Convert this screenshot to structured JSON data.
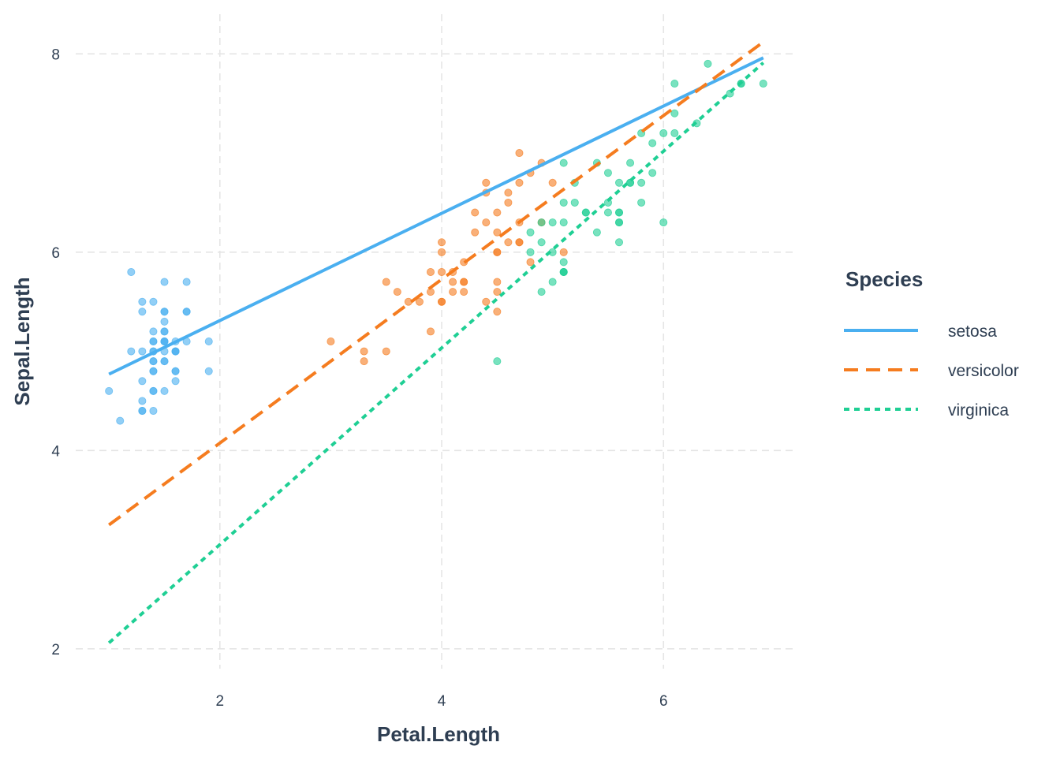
{
  "chart_data": {
    "type": "scatter",
    "title": "",
    "xlabel": "Petal.Length",
    "ylabel": "Sepal.Length",
    "xlim": [
      0.7,
      7.2
    ],
    "ylim": [
      1.8,
      8.4
    ],
    "x_ticks": [
      2,
      4,
      6
    ],
    "y_ticks": [
      2,
      4,
      6,
      8
    ],
    "x_tick_labels": [
      "2",
      "4",
      "6"
    ],
    "y_tick_labels": [
      "2",
      "4",
      "6",
      "8"
    ],
    "grid": true,
    "legend": {
      "title": "Species",
      "position": "right"
    },
    "series": [
      {
        "name": "setosa",
        "color": "#4aaff0",
        "line_style": "solid",
        "fit_line": [
          [
            1.0,
            4.77
          ],
          [
            6.9,
            7.96
          ]
        ],
        "points": [
          [
            1.4,
            5.1
          ],
          [
            1.4,
            4.9
          ],
          [
            1.3,
            4.7
          ],
          [
            1.5,
            4.6
          ],
          [
            1.4,
            5.0
          ],
          [
            1.7,
            5.4
          ],
          [
            1.4,
            4.6
          ],
          [
            1.5,
            5.0
          ],
          [
            1.4,
            4.4
          ],
          [
            1.5,
            4.9
          ],
          [
            1.5,
            5.4
          ],
          [
            1.6,
            4.8
          ],
          [
            1.4,
            4.8
          ],
          [
            1.1,
            4.3
          ],
          [
            1.2,
            5.8
          ],
          [
            1.5,
            5.7
          ],
          [
            1.3,
            5.4
          ],
          [
            1.4,
            5.1
          ],
          [
            1.7,
            5.7
          ],
          [
            1.5,
            5.1
          ],
          [
            1.7,
            5.4
          ],
          [
            1.5,
            5.1
          ],
          [
            1.0,
            4.6
          ],
          [
            1.7,
            5.1
          ],
          [
            1.9,
            4.8
          ],
          [
            1.6,
            5.0
          ],
          [
            1.6,
            5.0
          ],
          [
            1.5,
            5.2
          ],
          [
            1.4,
            5.2
          ],
          [
            1.6,
            4.7
          ],
          [
            1.6,
            4.8
          ],
          [
            1.5,
            5.4
          ],
          [
            1.5,
            5.2
          ],
          [
            1.4,
            5.5
          ],
          [
            1.5,
            4.9
          ],
          [
            1.2,
            5.0
          ],
          [
            1.3,
            5.5
          ],
          [
            1.4,
            4.9
          ],
          [
            1.3,
            4.4
          ],
          [
            1.5,
            5.1
          ],
          [
            1.3,
            5.0
          ],
          [
            1.3,
            4.5
          ],
          [
            1.3,
            4.4
          ],
          [
            1.6,
            5.0
          ],
          [
            1.9,
            5.1
          ],
          [
            1.4,
            4.8
          ],
          [
            1.6,
            5.1
          ],
          [
            1.4,
            4.6
          ],
          [
            1.5,
            5.3
          ],
          [
            1.4,
            5.0
          ]
        ]
      },
      {
        "name": "versicolor",
        "color": "#f57c1f",
        "line_style": "dashed",
        "fit_line": [
          [
            1.0,
            3.25
          ],
          [
            6.9,
            8.12
          ]
        ],
        "points": [
          [
            4.7,
            7.0
          ],
          [
            4.5,
            6.4
          ],
          [
            4.9,
            6.9
          ],
          [
            4.0,
            5.5
          ],
          [
            4.6,
            6.5
          ],
          [
            4.5,
            5.7
          ],
          [
            4.7,
            6.3
          ],
          [
            3.3,
            4.9
          ],
          [
            4.6,
            6.6
          ],
          [
            3.9,
            5.2
          ],
          [
            3.5,
            5.0
          ],
          [
            4.2,
            5.9
          ],
          [
            4.0,
            6.0
          ],
          [
            4.7,
            6.1
          ],
          [
            3.6,
            5.6
          ],
          [
            4.4,
            6.7
          ],
          [
            4.5,
            5.6
          ],
          [
            4.1,
            5.8
          ],
          [
            4.5,
            6.2
          ],
          [
            3.9,
            5.6
          ],
          [
            4.8,
            5.9
          ],
          [
            4.0,
            6.1
          ],
          [
            4.9,
            6.3
          ],
          [
            4.7,
            6.1
          ],
          [
            4.3,
            6.4
          ],
          [
            4.4,
            6.6
          ],
          [
            4.8,
            6.8
          ],
          [
            5.0,
            6.7
          ],
          [
            4.5,
            6.0
          ],
          [
            3.5,
            5.7
          ],
          [
            3.8,
            5.5
          ],
          [
            3.7,
            5.5
          ],
          [
            3.9,
            5.8
          ],
          [
            5.1,
            6.0
          ],
          [
            4.5,
            5.4
          ],
          [
            4.5,
            6.0
          ],
          [
            4.7,
            6.7
          ],
          [
            4.4,
            6.3
          ],
          [
            4.1,
            5.6
          ],
          [
            4.0,
            5.5
          ],
          [
            4.4,
            5.5
          ],
          [
            4.6,
            6.1
          ],
          [
            4.0,
            5.8
          ],
          [
            3.3,
            5.0
          ],
          [
            4.2,
            5.6
          ],
          [
            4.2,
            5.7
          ],
          [
            4.2,
            5.7
          ],
          [
            4.3,
            6.2
          ],
          [
            3.0,
            5.1
          ],
          [
            4.1,
            5.7
          ]
        ]
      },
      {
        "name": "virginica",
        "color": "#1fcf94",
        "line_style": "dotted",
        "fit_line": [
          [
            1.0,
            2.06
          ],
          [
            6.9,
            7.91
          ]
        ],
        "points": [
          [
            6.0,
            6.3
          ],
          [
            5.1,
            5.8
          ],
          [
            5.9,
            7.1
          ],
          [
            5.6,
            6.3
          ],
          [
            5.8,
            6.5
          ],
          [
            6.6,
            7.6
          ],
          [
            4.5,
            4.9
          ],
          [
            6.3,
            7.3
          ],
          [
            5.8,
            6.7
          ],
          [
            6.1,
            7.2
          ],
          [
            5.1,
            6.5
          ],
          [
            5.3,
            6.4
          ],
          [
            5.5,
            6.8
          ],
          [
            5.0,
            5.7
          ],
          [
            5.1,
            5.8
          ],
          [
            5.3,
            6.4
          ],
          [
            5.5,
            6.5
          ],
          [
            6.7,
            7.7
          ],
          [
            6.9,
            7.7
          ],
          [
            5.0,
            6.0
          ],
          [
            5.7,
            6.9
          ],
          [
            4.9,
            5.6
          ],
          [
            6.7,
            7.7
          ],
          [
            4.9,
            6.3
          ],
          [
            5.7,
            6.7
          ],
          [
            6.0,
            7.2
          ],
          [
            4.8,
            6.2
          ],
          [
            4.9,
            6.1
          ],
          [
            5.6,
            6.4
          ],
          [
            5.8,
            7.2
          ],
          [
            6.1,
            7.4
          ],
          [
            6.4,
            7.9
          ],
          [
            5.6,
            6.4
          ],
          [
            5.1,
            6.3
          ],
          [
            5.6,
            6.1
          ],
          [
            6.1,
            7.7
          ],
          [
            5.6,
            6.3
          ],
          [
            5.5,
            6.4
          ],
          [
            4.8,
            6.0
          ],
          [
            5.4,
            6.9
          ],
          [
            5.6,
            6.7
          ],
          [
            5.1,
            6.9
          ],
          [
            5.1,
            5.8
          ],
          [
            5.9,
            6.8
          ],
          [
            5.7,
            6.7
          ],
          [
            5.2,
            6.7
          ],
          [
            5.0,
            6.3
          ],
          [
            5.2,
            6.5
          ],
          [
            5.4,
            6.2
          ],
          [
            5.1,
            5.9
          ]
        ]
      }
    ]
  }
}
